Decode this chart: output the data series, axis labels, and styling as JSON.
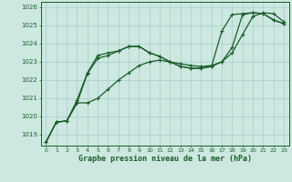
{
  "xlabel": "Graphe pression niveau de la mer (hPa)",
  "background_color": "#cce8e0",
  "grid_color": "#aacccc",
  "line_color": "#1a5c2a",
  "ylim": [
    1018.4,
    1026.3
  ],
  "xlim": [
    -0.5,
    23.5
  ],
  "yticks": [
    1019,
    1020,
    1021,
    1022,
    1023,
    1024,
    1025,
    1026
  ],
  "xticks": [
    0,
    1,
    2,
    3,
    4,
    5,
    6,
    7,
    8,
    9,
    10,
    11,
    12,
    13,
    14,
    15,
    16,
    17,
    18,
    19,
    20,
    21,
    22,
    23
  ],
  "series": [
    [
      1018.6,
      1019.7,
      1019.75,
      1020.75,
      1020.75,
      1021.0,
      1021.5,
      1022.0,
      1022.4,
      1022.8,
      1023.0,
      1023.1,
      1023.0,
      1022.9,
      1022.8,
      1022.75,
      1022.8,
      1023.0,
      1023.5,
      1024.5,
      1025.5,
      1025.7,
      1025.65,
      1025.2
    ],
    [
      1018.6,
      1019.7,
      1019.75,
      1020.75,
      1022.35,
      1023.2,
      1023.35,
      1023.6,
      1023.85,
      1023.85,
      1023.5,
      1023.3,
      1023.0,
      1022.75,
      1022.65,
      1022.65,
      1022.75,
      1023.0,
      1023.8,
      1025.6,
      1025.7,
      1025.65,
      1025.3,
      1025.1
    ],
    [
      1018.6,
      1019.7,
      1019.75,
      1020.9,
      1022.4,
      1023.35,
      1023.5,
      1023.6,
      1023.85,
      1023.85,
      1023.5,
      1023.3,
      1023.0,
      1022.75,
      1022.65,
      1022.65,
      1022.75,
      1024.7,
      1025.6,
      1025.65,
      1025.7,
      1025.65,
      1025.3,
      1025.1
    ]
  ],
  "marker": "+",
  "marker_size": 3.5,
  "linewidth": 0.9
}
